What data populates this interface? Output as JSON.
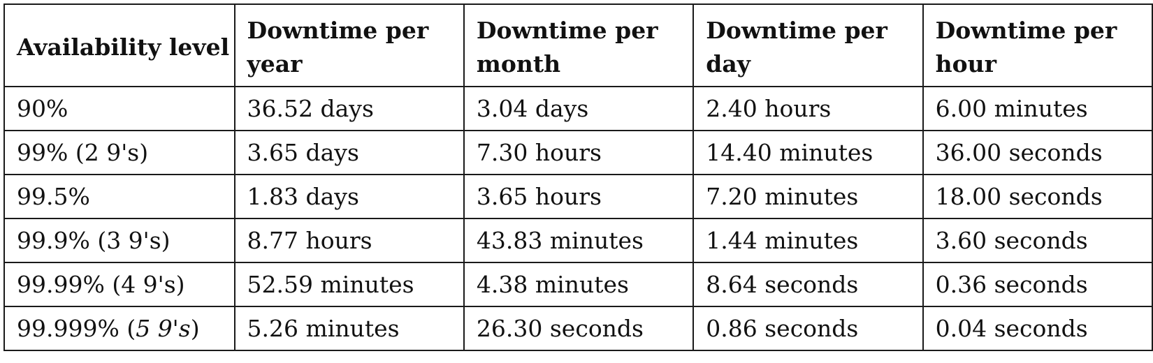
{
  "table": {
    "headers": [
      "Availability level",
      "Downtime per year",
      "Downtime per month",
      "Downtime per day",
      "Downtime per hour"
    ],
    "rows": [
      [
        "90%",
        "36.52 days",
        "3.04 days",
        "2.40 hours",
        "6.00 minutes"
      ],
      [
        "99% (2 9's)",
        "3.65 days",
        "7.30 hours",
        "14.40 minutes",
        "36.00 seconds"
      ],
      [
        "99.5%",
        "1.83 days",
        "3.65 hours",
        "7.20 minutes",
        "18.00 seconds"
      ],
      [
        "99.9% (3 9's)",
        "8.77 hours",
        "43.83 minutes",
        "1.44 minutes",
        "3.60 seconds"
      ],
      [
        "99.99% (4 9's)",
        "52.59 minutes",
        "4.38 minutes",
        "8.64 seconds",
        "0.36 seconds"
      ],
      [
        "99.999% (",
        "5.26 minutes",
        "26.30 seconds",
        "0.86 seconds",
        "0.04 seconds"
      ]
    ],
    "last_row_first_cell_italic": "5 9's",
    "last_row_first_cell_tail": ")"
  }
}
